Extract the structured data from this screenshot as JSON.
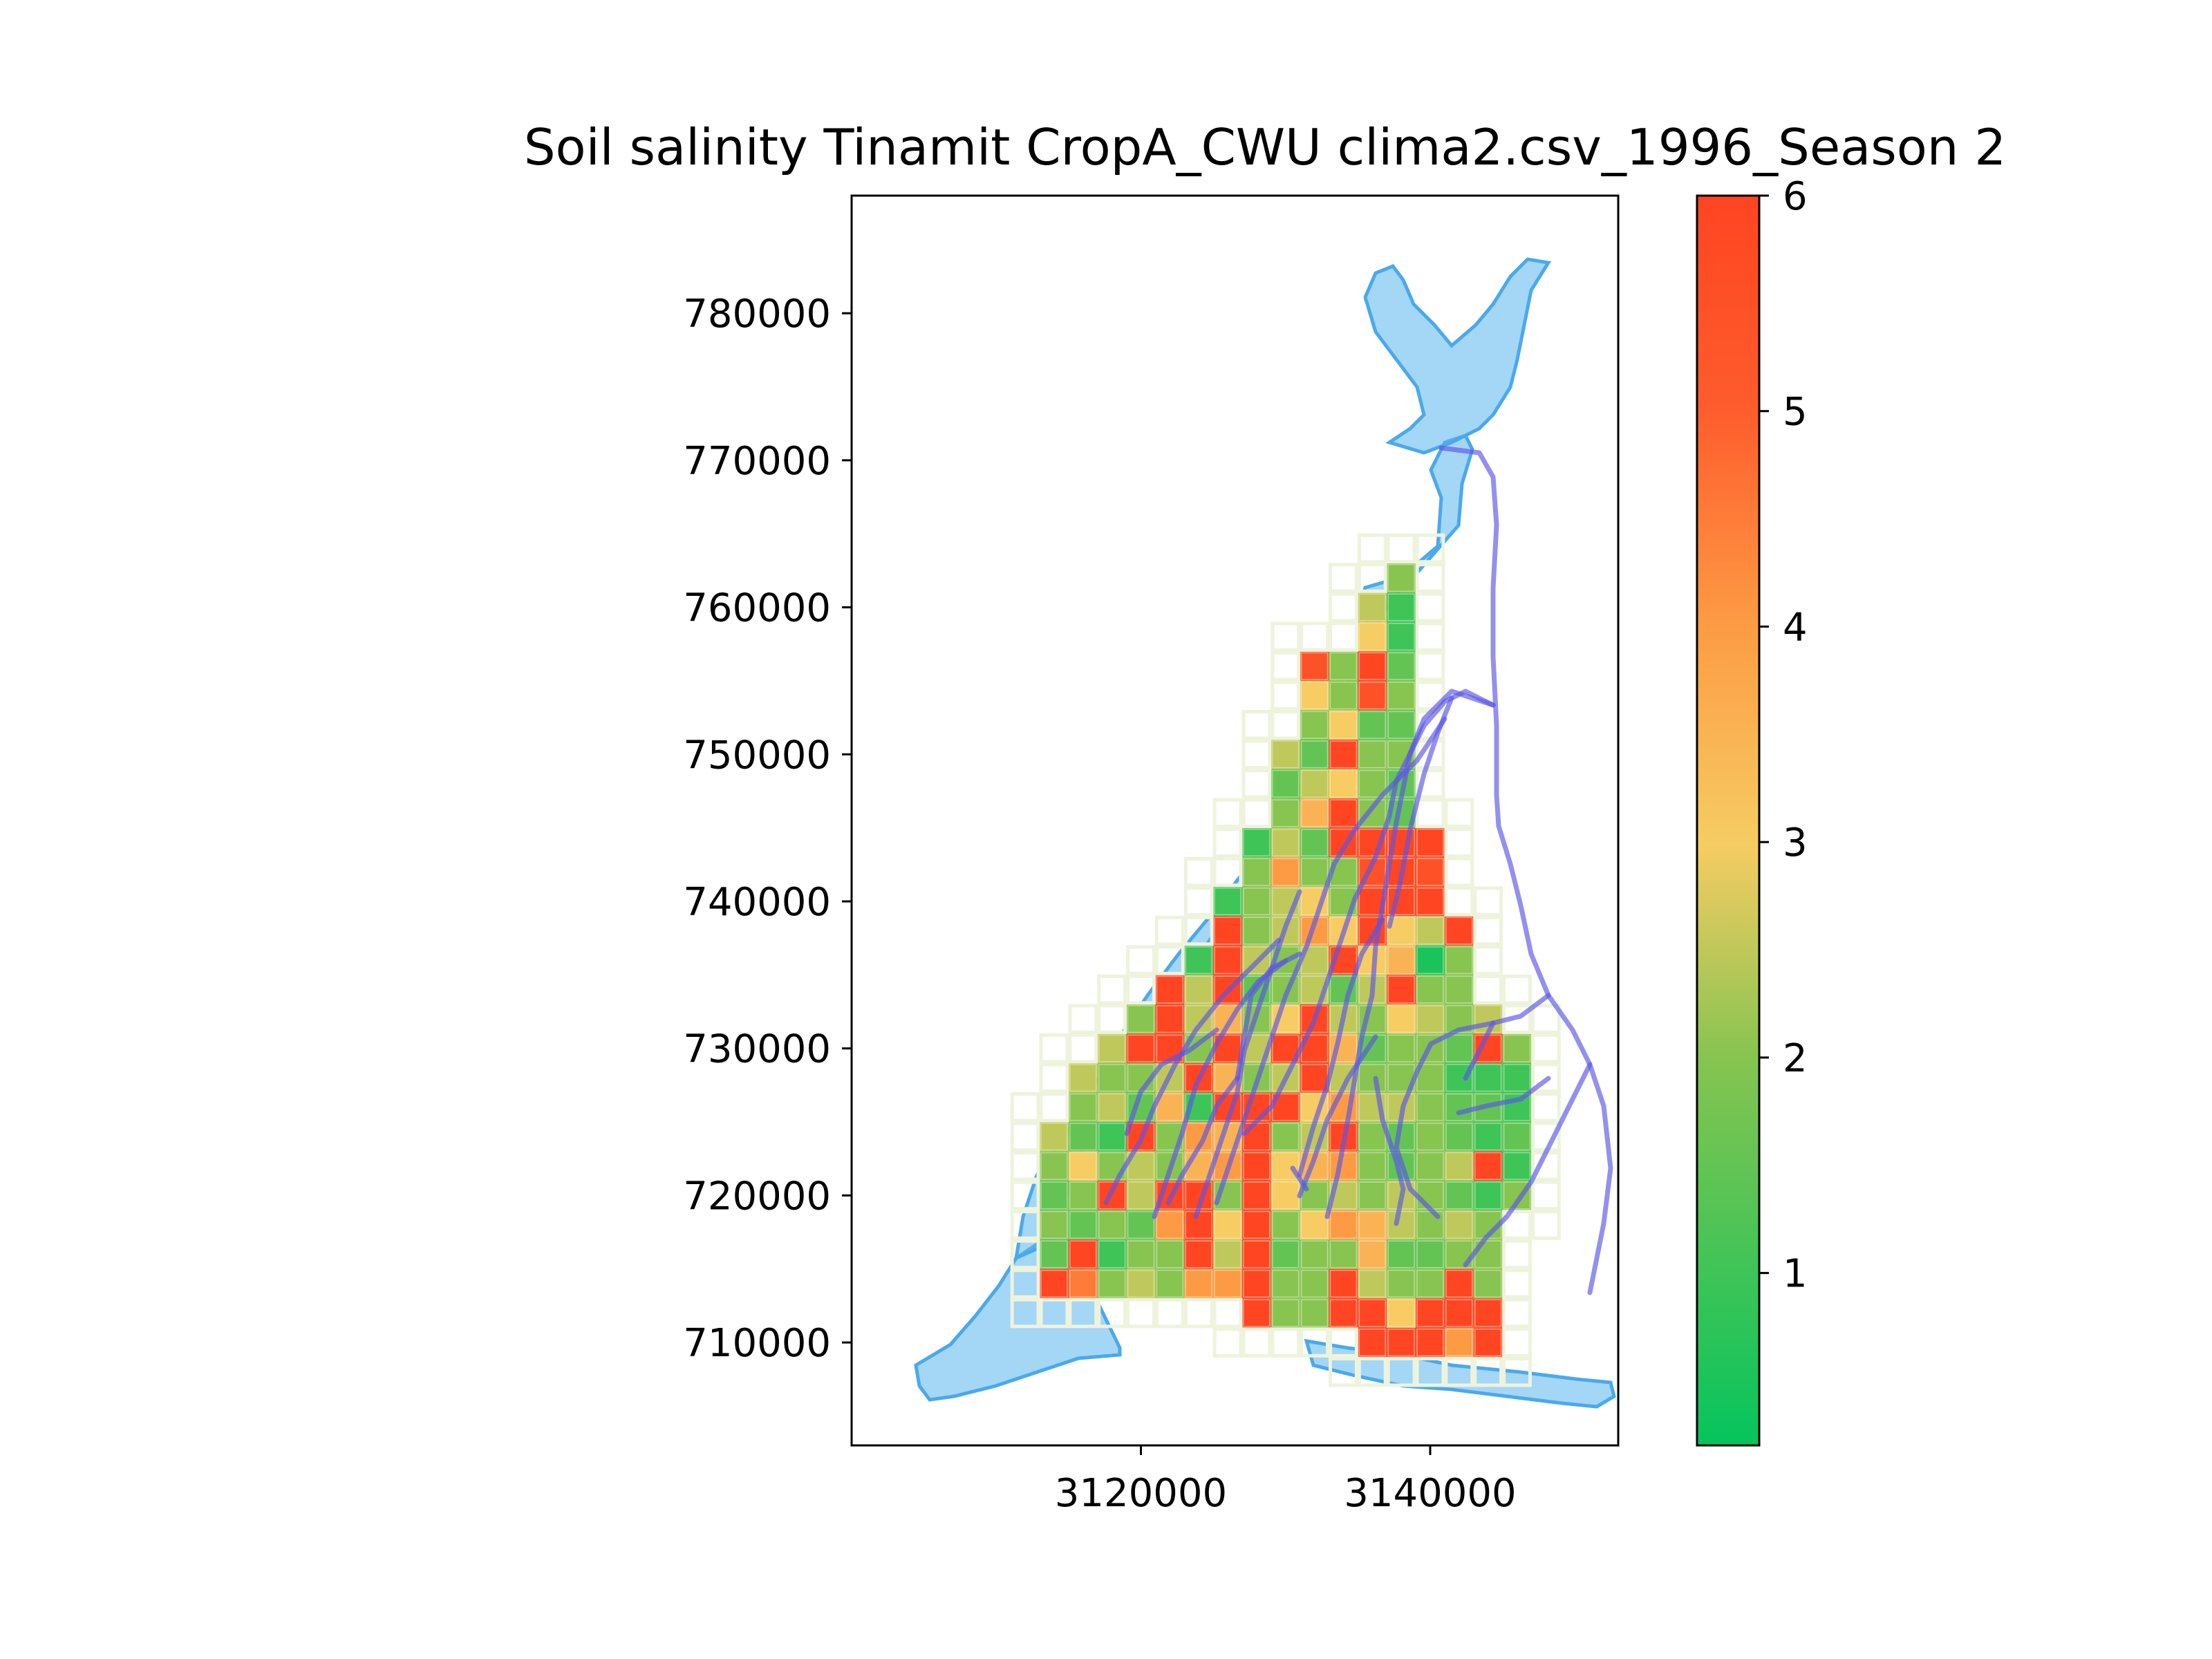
{
  "chart_data": {
    "type": "heatmap",
    "title": "Soil salinity Tinamit CropA_CWU clima2.csv_1996_Season 2",
    "xlabel": "",
    "ylabel": "",
    "x_ticks": [
      3120000,
      3140000
    ],
    "x_tick_labels": [
      "3120000",
      "3140000"
    ],
    "y_ticks": [
      710000,
      720000,
      730000,
      740000,
      750000,
      760000,
      770000,
      780000
    ],
    "y_tick_labels": [
      "710000",
      "720000",
      "730000",
      "740000",
      "750000",
      "760000",
      "770000",
      "780000"
    ],
    "xlim": [
      3100000,
      3153000
    ],
    "ylim": [
      703000,
      788000
    ],
    "grid": false,
    "colorbar": {
      "range": [
        0.2,
        6
      ],
      "ticks": [
        1,
        2,
        3,
        4,
        5,
        6
      ],
      "tick_labels": [
        "1",
        "2",
        "3",
        "4",
        "5",
        "6"
      ],
      "colors": [
        "#05c45d",
        "#87c450",
        "#f6cc63",
        "#fd9a44",
        "#fe5c2c",
        "#ff4522"
      ]
    },
    "cell_size": 2000,
    "cells": [
      [
        3138000,
        762000,
        2.0
      ],
      [
        3136000,
        760000,
        2.5
      ],
      [
        3138000,
        760000,
        1.0
      ],
      [
        3136000,
        758000,
        3.0
      ],
      [
        3138000,
        758000,
        1.0
      ],
      [
        3132000,
        756000,
        5.5
      ],
      [
        3134000,
        756000,
        2.0
      ],
      [
        3136000,
        756000,
        6.0
      ],
      [
        3138000,
        756000,
        1.5
      ],
      [
        3132000,
        754000,
        3.0
      ],
      [
        3134000,
        754000,
        2.0
      ],
      [
        3136000,
        754000,
        5.5
      ],
      [
        3138000,
        754000,
        2.0
      ],
      [
        3132000,
        752000,
        2.0
      ],
      [
        3134000,
        752000,
        3.0
      ],
      [
        3136000,
        752000,
        1.5
      ],
      [
        3138000,
        752000,
        1.5
      ],
      [
        3130000,
        750000,
        2.5
      ],
      [
        3132000,
        750000,
        1.5
      ],
      [
        3134000,
        750000,
        6.0
      ],
      [
        3136000,
        750000,
        2.0
      ],
      [
        3138000,
        750000,
        2.0
      ],
      [
        3130000,
        748000,
        1.5
      ],
      [
        3132000,
        748000,
        2.5
      ],
      [
        3134000,
        748000,
        3.0
      ],
      [
        3136000,
        748000,
        2.0
      ],
      [
        3138000,
        748000,
        1.5
      ],
      [
        3130000,
        746000,
        2.0
      ],
      [
        3132000,
        746000,
        3.5
      ],
      [
        3134000,
        746000,
        6.0
      ],
      [
        3136000,
        746000,
        2.0
      ],
      [
        3138000,
        746000,
        1.5
      ],
      [
        3128000,
        744000,
        1.0
      ],
      [
        3130000,
        744000,
        2.5
      ],
      [
        3132000,
        744000,
        1.5
      ],
      [
        3134000,
        744000,
        6.0
      ],
      [
        3136000,
        744000,
        6.0
      ],
      [
        3138000,
        744000,
        6.0
      ],
      [
        3140000,
        744000,
        6.0
      ],
      [
        3128000,
        742000,
        2.0
      ],
      [
        3130000,
        742000,
        4.0
      ],
      [
        3132000,
        742000,
        2.0
      ],
      [
        3134000,
        742000,
        2.0
      ],
      [
        3136000,
        742000,
        5.5
      ],
      [
        3138000,
        742000,
        6.0
      ],
      [
        3140000,
        742000,
        5.5
      ],
      [
        3126000,
        740000,
        1.0
      ],
      [
        3128000,
        740000,
        2.0
      ],
      [
        3130000,
        740000,
        2.5
      ],
      [
        3132000,
        740000,
        3.0
      ],
      [
        3134000,
        740000,
        2.0
      ],
      [
        3136000,
        740000,
        6.0
      ],
      [
        3138000,
        740000,
        6.0
      ],
      [
        3140000,
        740000,
        6.0
      ],
      [
        3126000,
        738000,
        6.0
      ],
      [
        3128000,
        738000,
        2.0
      ],
      [
        3130000,
        738000,
        2.5
      ],
      [
        3132000,
        738000,
        4.0
      ],
      [
        3134000,
        738000,
        3.0
      ],
      [
        3136000,
        738000,
        6.0
      ],
      [
        3138000,
        738000,
        3.0
      ],
      [
        3140000,
        738000,
        2.5
      ],
      [
        3142000,
        738000,
        6.0
      ],
      [
        3124000,
        736000,
        1.0
      ],
      [
        3126000,
        736000,
        6.0
      ],
      [
        3128000,
        736000,
        2.5
      ],
      [
        3130000,
        736000,
        2.0
      ],
      [
        3132000,
        736000,
        2.5
      ],
      [
        3134000,
        736000,
        6.0
      ],
      [
        3136000,
        736000,
        3.0
      ],
      [
        3138000,
        736000,
        3.5
      ],
      [
        3140000,
        736000,
        0.5
      ],
      [
        3142000,
        736000,
        2.0
      ],
      [
        3122000,
        734000,
        6.0
      ],
      [
        3124000,
        734000,
        2.5
      ],
      [
        3126000,
        734000,
        6.0
      ],
      [
        3128000,
        734000,
        1.5
      ],
      [
        3130000,
        734000,
        2.0
      ],
      [
        3132000,
        734000,
        2.5
      ],
      [
        3134000,
        734000,
        1.5
      ],
      [
        3136000,
        734000,
        2.5
      ],
      [
        3138000,
        734000,
        6.0
      ],
      [
        3140000,
        734000,
        2.0
      ],
      [
        3142000,
        734000,
        2.0
      ],
      [
        3120000,
        732000,
        2.0
      ],
      [
        3122000,
        732000,
        6.0
      ],
      [
        3124000,
        732000,
        2.5
      ],
      [
        3126000,
        732000,
        3.5
      ],
      [
        3128000,
        732000,
        2.0
      ],
      [
        3130000,
        732000,
        3.0
      ],
      [
        3132000,
        732000,
        6.0
      ],
      [
        3134000,
        732000,
        2.5
      ],
      [
        3136000,
        732000,
        2.0
      ],
      [
        3138000,
        732000,
        3.0
      ],
      [
        3140000,
        732000,
        2.5
      ],
      [
        3142000,
        732000,
        2.0
      ],
      [
        3144000,
        732000,
        2.5
      ],
      [
        3118000,
        730000,
        2.5
      ],
      [
        3120000,
        730000,
        6.0
      ],
      [
        3122000,
        730000,
        6.0
      ],
      [
        3124000,
        730000,
        2.0
      ],
      [
        3126000,
        730000,
        6.0
      ],
      [
        3128000,
        730000,
        2.5
      ],
      [
        3130000,
        730000,
        6.0
      ],
      [
        3132000,
        730000,
        6.0
      ],
      [
        3134000,
        730000,
        3.5
      ],
      [
        3136000,
        730000,
        1.5
      ],
      [
        3138000,
        730000,
        2.0
      ],
      [
        3140000,
        730000,
        2.0
      ],
      [
        3142000,
        730000,
        1.5
      ],
      [
        3144000,
        730000,
        6.0
      ],
      [
        3146000,
        730000,
        2.0
      ],
      [
        3116000,
        728000,
        2.5
      ],
      [
        3118000,
        728000,
        2.0
      ],
      [
        3120000,
        728000,
        2.0
      ],
      [
        3122000,
        728000,
        2.5
      ],
      [
        3124000,
        728000,
        6.0
      ],
      [
        3126000,
        728000,
        3.5
      ],
      [
        3128000,
        728000,
        2.0
      ],
      [
        3130000,
        728000,
        2.5
      ],
      [
        3132000,
        728000,
        6.0
      ],
      [
        3134000,
        728000,
        2.5
      ],
      [
        3136000,
        728000,
        2.0
      ],
      [
        3138000,
        728000,
        2.0
      ],
      [
        3140000,
        728000,
        2.0
      ],
      [
        3142000,
        728000,
        1.0
      ],
      [
        3144000,
        728000,
        1.0
      ],
      [
        3146000,
        728000,
        1.0
      ],
      [
        3116000,
        726000,
        2.0
      ],
      [
        3118000,
        726000,
        2.5
      ],
      [
        3120000,
        726000,
        1.5
      ],
      [
        3122000,
        726000,
        3.5
      ],
      [
        3124000,
        726000,
        1.0
      ],
      [
        3126000,
        726000,
        6.0
      ],
      [
        3128000,
        726000,
        6.0
      ],
      [
        3130000,
        726000,
        6.0
      ],
      [
        3132000,
        726000,
        3.0
      ],
      [
        3134000,
        726000,
        4.0
      ],
      [
        3136000,
        726000,
        2.5
      ],
      [
        3138000,
        726000,
        2.5
      ],
      [
        3140000,
        726000,
        2.0
      ],
      [
        3142000,
        726000,
        1.5
      ],
      [
        3144000,
        726000,
        1.5
      ],
      [
        3146000,
        726000,
        1.0
      ],
      [
        3114000,
        724000,
        2.5
      ],
      [
        3116000,
        724000,
        1.5
      ],
      [
        3118000,
        724000,
        1.0
      ],
      [
        3120000,
        724000,
        6.0
      ],
      [
        3122000,
        724000,
        2.0
      ],
      [
        3124000,
        724000,
        4.0
      ],
      [
        3126000,
        724000,
        3.5
      ],
      [
        3128000,
        724000,
        6.0
      ],
      [
        3130000,
        724000,
        2.0
      ],
      [
        3132000,
        724000,
        2.5
      ],
      [
        3134000,
        724000,
        6.0
      ],
      [
        3136000,
        724000,
        2.0
      ],
      [
        3138000,
        724000,
        1.5
      ],
      [
        3140000,
        724000,
        2.0
      ],
      [
        3142000,
        724000,
        1.5
      ],
      [
        3144000,
        724000,
        1.0
      ],
      [
        3146000,
        724000,
        1.5
      ],
      [
        3114000,
        722000,
        2.0
      ],
      [
        3116000,
        722000,
        3.0
      ],
      [
        3118000,
        722000,
        2.0
      ],
      [
        3120000,
        722000,
        2.5
      ],
      [
        3122000,
        722000,
        2.0
      ],
      [
        3124000,
        722000,
        3.5
      ],
      [
        3126000,
        722000,
        4.0
      ],
      [
        3128000,
        722000,
        6.0
      ],
      [
        3130000,
        722000,
        3.0
      ],
      [
        3132000,
        722000,
        3.5
      ],
      [
        3134000,
        722000,
        4.0
      ],
      [
        3136000,
        722000,
        2.0
      ],
      [
        3138000,
        722000,
        1.5
      ],
      [
        3140000,
        722000,
        2.0
      ],
      [
        3142000,
        722000,
        2.5
      ],
      [
        3144000,
        722000,
        6.0
      ],
      [
        3146000,
        722000,
        1.0
      ],
      [
        3114000,
        720000,
        1.5
      ],
      [
        3116000,
        720000,
        2.0
      ],
      [
        3118000,
        720000,
        6.0
      ],
      [
        3120000,
        720000,
        2.5
      ],
      [
        3122000,
        720000,
        6.0
      ],
      [
        3124000,
        720000,
        6.0
      ],
      [
        3126000,
        720000,
        2.0
      ],
      [
        3128000,
        720000,
        6.0
      ],
      [
        3130000,
        720000,
        3.0
      ],
      [
        3132000,
        720000,
        2.0
      ],
      [
        3134000,
        720000,
        2.5
      ],
      [
        3136000,
        720000,
        2.0
      ],
      [
        3138000,
        720000,
        2.5
      ],
      [
        3140000,
        720000,
        2.0
      ],
      [
        3142000,
        720000,
        1.5
      ],
      [
        3144000,
        720000,
        1.0
      ],
      [
        3146000,
        720000,
        2.0
      ],
      [
        3114000,
        718000,
        2.0
      ],
      [
        3116000,
        718000,
        1.5
      ],
      [
        3118000,
        718000,
        2.0
      ],
      [
        3120000,
        718000,
        1.5
      ],
      [
        3122000,
        718000,
        4.0
      ],
      [
        3124000,
        718000,
        6.0
      ],
      [
        3126000,
        718000,
        3.0
      ],
      [
        3128000,
        718000,
        6.0
      ],
      [
        3130000,
        718000,
        2.0
      ],
      [
        3132000,
        718000,
        3.0
      ],
      [
        3134000,
        718000,
        4.0
      ],
      [
        3136000,
        718000,
        3.5
      ],
      [
        3138000,
        718000,
        2.5
      ],
      [
        3140000,
        718000,
        2.0
      ],
      [
        3142000,
        718000,
        2.5
      ],
      [
        3144000,
        718000,
        2.0
      ],
      [
        3114000,
        716000,
        1.5
      ],
      [
        3116000,
        716000,
        6.0
      ],
      [
        3118000,
        716000,
        1.0
      ],
      [
        3120000,
        716000,
        2.0
      ],
      [
        3122000,
        716000,
        2.0
      ],
      [
        3124000,
        716000,
        6.0
      ],
      [
        3126000,
        716000,
        2.5
      ],
      [
        3128000,
        716000,
        6.0
      ],
      [
        3130000,
        716000,
        1.5
      ],
      [
        3132000,
        716000,
        2.0
      ],
      [
        3134000,
        716000,
        2.0
      ],
      [
        3136000,
        716000,
        3.5
      ],
      [
        3138000,
        716000,
        1.5
      ],
      [
        3140000,
        716000,
        1.5
      ],
      [
        3142000,
        716000,
        2.0
      ],
      [
        3144000,
        716000,
        2.0
      ],
      [
        3114000,
        714000,
        6.0
      ],
      [
        3116000,
        714000,
        4.5
      ],
      [
        3118000,
        714000,
        2.0
      ],
      [
        3120000,
        714000,
        2.5
      ],
      [
        3122000,
        714000,
        2.0
      ],
      [
        3124000,
        714000,
        4.0
      ],
      [
        3126000,
        714000,
        4.0
      ],
      [
        3128000,
        714000,
        6.0
      ],
      [
        3130000,
        714000,
        2.0
      ],
      [
        3132000,
        714000,
        2.0
      ],
      [
        3134000,
        714000,
        6.0
      ],
      [
        3136000,
        714000,
        2.5
      ],
      [
        3138000,
        714000,
        2.0
      ],
      [
        3140000,
        714000,
        2.0
      ],
      [
        3142000,
        714000,
        6.0
      ],
      [
        3144000,
        714000,
        2.0
      ],
      [
        3128000,
        712000,
        6.0
      ],
      [
        3130000,
        712000,
        2.0
      ],
      [
        3132000,
        712000,
        2.0
      ],
      [
        3134000,
        712000,
        6.0
      ],
      [
        3136000,
        712000,
        6.0
      ],
      [
        3138000,
        712000,
        3.0
      ],
      [
        3140000,
        712000,
        6.0
      ],
      [
        3142000,
        712000,
        6.0
      ],
      [
        3144000,
        712000,
        6.0
      ],
      [
        3136000,
        710000,
        6.0
      ],
      [
        3138000,
        710000,
        6.0
      ],
      [
        3140000,
        710000,
        6.0
      ],
      [
        3142000,
        710000,
        4.0
      ],
      [
        3144000,
        710000,
        6.0
      ]
    ]
  }
}
